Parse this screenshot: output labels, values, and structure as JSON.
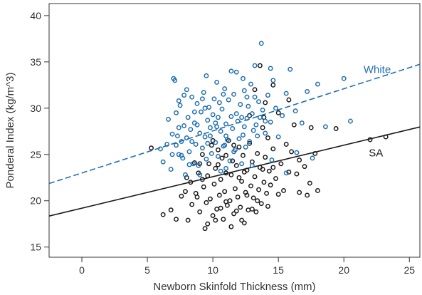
{
  "chart_data": {
    "type": "scatter",
    "title": "",
    "xlabel": "Newborn Skinfold Thickness (mm)",
    "ylabel": "Ponderal Index (kg/m^3)",
    "xlim": [
      -2.5,
      25.8
    ],
    "ylim": [
      13.9,
      41.3
    ],
    "xticks": [
      0,
      5,
      10,
      15,
      20,
      25
    ],
    "yticks": [
      15,
      20,
      25,
      30,
      35,
      40
    ],
    "grid": false,
    "series": [
      {
        "name": "White",
        "color": "#1f6fb2",
        "marker": "open-circle",
        "fit": {
          "intercept": 23.0,
          "slope": 0.455,
          "style": "dashed"
        },
        "label_at": [
          21.5,
          33.8
        ],
        "points": [
          [
            6.0,
            25.6
          ],
          [
            6.2,
            24.2
          ],
          [
            6.5,
            26.1
          ],
          [
            6.6,
            28.8
          ],
          [
            6.8,
            23.4
          ],
          [
            6.9,
            27.2
          ],
          [
            7.0,
            33.2
          ],
          [
            7.1,
            33.0
          ],
          [
            7.2,
            29.5
          ],
          [
            7.3,
            27.0
          ],
          [
            7.4,
            25.0
          ],
          [
            7.5,
            30.3
          ],
          [
            7.6,
            26.4
          ],
          [
            7.7,
            24.6
          ],
          [
            7.8,
            28.1
          ],
          [
            7.9,
            22.8
          ],
          [
            8.0,
            26.8
          ],
          [
            8.1,
            29.0
          ],
          [
            8.2,
            25.3
          ],
          [
            8.3,
            27.7
          ],
          [
            8.4,
            31.2
          ],
          [
            8.5,
            24.0
          ],
          [
            8.6,
            28.4
          ],
          [
            8.7,
            26.1
          ],
          [
            8.8,
            30.5
          ],
          [
            8.9,
            23.8
          ],
          [
            9.0,
            27.3
          ],
          [
            9.1,
            29.6
          ],
          [
            9.2,
            25.7
          ],
          [
            9.3,
            31.7
          ],
          [
            9.4,
            26.9
          ],
          [
            9.5,
            24.5
          ],
          [
            9.6,
            28.7
          ],
          [
            9.7,
            30.1
          ],
          [
            9.8,
            27.0
          ],
          [
            9.9,
            25.1
          ],
          [
            10.0,
            29.3
          ],
          [
            10.1,
            31.0
          ],
          [
            10.2,
            26.3
          ],
          [
            10.3,
            28.0
          ],
          [
            10.4,
            24.8
          ],
          [
            10.5,
            30.6
          ],
          [
            10.6,
            27.5
          ],
          [
            10.7,
            29.9
          ],
          [
            10.8,
            25.9
          ],
          [
            10.9,
            32.1
          ],
          [
            11.0,
            28.3
          ],
          [
            11.1,
            26.6
          ],
          [
            11.2,
            30.9
          ],
          [
            11.3,
            24.3
          ],
          [
            11.4,
            29.1
          ],
          [
            11.5,
            27.8
          ],
          [
            11.6,
            31.5
          ],
          [
            11.7,
            25.5
          ],
          [
            11.8,
            33.9
          ],
          [
            11.9,
            28.6
          ],
          [
            12.0,
            26.7
          ],
          [
            12.1,
            30.4
          ],
          [
            12.2,
            29.0
          ],
          [
            12.3,
            27.1
          ],
          [
            12.4,
            31.9
          ],
          [
            12.5,
            25.8
          ],
          [
            12.6,
            28.9
          ],
          [
            12.7,
            30.2
          ],
          [
            12.8,
            26.4
          ],
          [
            12.9,
            32.6
          ],
          [
            13.0,
            29.4
          ],
          [
            13.1,
            27.6
          ],
          [
            13.2,
            31.2
          ],
          [
            13.3,
            28.2
          ],
          [
            13.5,
            30.7
          ],
          [
            13.7,
            37.0
          ],
          [
            13.8,
            29.8
          ],
          [
            14.0,
            27.3
          ],
          [
            14.2,
            31.4
          ],
          [
            14.4,
            28.5
          ],
          [
            14.6,
            33.0
          ],
          [
            14.8,
            30.0
          ],
          [
            15.0,
            26.9
          ],
          [
            15.3,
            29.2
          ],
          [
            15.6,
            31.6
          ],
          [
            15.9,
            34.2
          ],
          [
            16.3,
            29.7
          ],
          [
            16.8,
            28.4
          ],
          [
            17.2,
            31.8
          ],
          [
            18.0,
            32.6
          ],
          [
            18.6,
            28.0
          ],
          [
            20.0,
            33.2
          ],
          [
            20.5,
            28.6
          ],
          [
            7.4,
            30.8
          ],
          [
            8.0,
            32.0
          ],
          [
            9.5,
            33.5
          ],
          [
            10.3,
            32.8
          ],
          [
            11.4,
            34.0
          ],
          [
            12.3,
            33.2
          ],
          [
            13.2,
            34.6
          ],
          [
            14.4,
            34.3
          ],
          [
            9.0,
            22.8
          ],
          [
            11.0,
            23.5
          ],
          [
            13.0,
            23.8
          ],
          [
            14.5,
            24.4
          ],
          [
            15.6,
            23.0
          ],
          [
            16.4,
            25.2
          ],
          [
            17.6,
            24.6
          ],
          [
            10.6,
            23.2
          ],
          [
            12.2,
            24.0
          ],
          [
            9.2,
            31.0
          ],
          [
            10.8,
            31.5
          ],
          [
            8.6,
            29.6
          ],
          [
            7.8,
            31.4
          ],
          [
            6.9,
            25.0
          ],
          [
            7.4,
            27.9
          ],
          [
            8.2,
            23.9
          ],
          [
            9.8,
            27.9
          ],
          [
            10.4,
            29.0
          ],
          [
            11.0,
            27.0
          ],
          [
            11.8,
            29.4
          ],
          [
            12.6,
            31.2
          ],
          [
            13.4,
            27.0
          ],
          [
            14.0,
            28.6
          ],
          [
            9.6,
            26.2
          ],
          [
            10.9,
            26.0
          ],
          [
            12.4,
            28.0
          ],
          [
            13.6,
            29.0
          ],
          [
            8.4,
            26.4
          ],
          [
            7.6,
            24.9
          ],
          [
            7.2,
            26.0
          ],
          [
            11.6,
            25.3
          ],
          [
            10.2,
            28.4
          ],
          [
            9.4,
            30.0
          ],
          [
            8.8,
            28.2
          ]
        ]
      },
      {
        "name": "SA",
        "color": "#1a1a1a",
        "marker": "open-circle",
        "fit": {
          "intercept": 19.2,
          "slope": 0.34,
          "style": "solid"
        },
        "label_at": [
          21.9,
          24.8
        ],
        "points": [
          [
            5.3,
            25.7
          ],
          [
            6.2,
            18.5
          ],
          [
            6.8,
            19.0
          ],
          [
            7.2,
            18.0
          ],
          [
            7.6,
            20.5
          ],
          [
            7.9,
            21.0
          ],
          [
            8.1,
            17.9
          ],
          [
            8.3,
            22.0
          ],
          [
            8.4,
            19.6
          ],
          [
            8.6,
            24.1
          ],
          [
            8.7,
            20.8
          ],
          [
            8.9,
            23.0
          ],
          [
            9.0,
            18.8
          ],
          [
            9.2,
            25.0
          ],
          [
            9.3,
            21.5
          ],
          [
            9.4,
            17.0
          ],
          [
            9.5,
            19.8
          ],
          [
            9.6,
            22.7
          ],
          [
            9.7,
            24.0
          ],
          [
            9.8,
            20.2
          ],
          [
            9.9,
            26.0
          ],
          [
            10.0,
            18.4
          ],
          [
            10.1,
            21.8
          ],
          [
            10.2,
            23.5
          ],
          [
            10.3,
            19.1
          ],
          [
            10.4,
            25.5
          ],
          [
            10.5,
            20.6
          ],
          [
            10.6,
            22.3
          ],
          [
            10.7,
            24.6
          ],
          [
            10.8,
            18.0
          ],
          [
            10.9,
            21.0
          ],
          [
            11.0,
            23.0
          ],
          [
            11.1,
            19.5
          ],
          [
            11.2,
            26.5
          ],
          [
            11.3,
            20.0
          ],
          [
            11.4,
            22.8
          ],
          [
            11.5,
            24.3
          ],
          [
            11.6,
            18.6
          ],
          [
            11.7,
            21.3
          ],
          [
            11.8,
            23.8
          ],
          [
            11.9,
            20.4
          ],
          [
            12.0,
            25.8
          ],
          [
            12.1,
            19.3
          ],
          [
            12.2,
            22.1
          ],
          [
            12.3,
            24.9
          ],
          [
            12.4,
            17.6
          ],
          [
            12.5,
            20.9
          ],
          [
            12.6,
            23.3
          ],
          [
            12.7,
            19.0
          ],
          [
            12.8,
            26.2
          ],
          [
            12.9,
            21.6
          ],
          [
            13.0,
            24.2
          ],
          [
            13.1,
            20.3
          ],
          [
            13.2,
            22.6
          ],
          [
            13.3,
            18.8
          ],
          [
            13.4,
            25.1
          ],
          [
            13.5,
            21.2
          ],
          [
            13.6,
            23.6
          ],
          [
            13.7,
            19.7
          ],
          [
            13.8,
            27.9
          ],
          [
            13.9,
            22.0
          ],
          [
            14.0,
            24.7
          ],
          [
            14.1,
            20.8
          ],
          [
            14.2,
            26.8
          ],
          [
            14.3,
            23.2
          ],
          [
            14.4,
            21.7
          ],
          [
            14.6,
            25.6
          ],
          [
            14.8,
            22.4
          ],
          [
            15.0,
            29.5
          ],
          [
            15.2,
            24.0
          ],
          [
            15.4,
            21.1
          ],
          [
            15.6,
            26.1
          ],
          [
            15.8,
            23.1
          ],
          [
            16.0,
            25.3
          ],
          [
            16.2,
            28.2
          ],
          [
            16.4,
            22.9
          ],
          [
            16.6,
            24.4
          ],
          [
            17.0,
            23.7
          ],
          [
            17.2,
            20.6
          ],
          [
            17.5,
            27.9
          ],
          [
            17.8,
            25.1
          ],
          [
            18.0,
            21.1
          ],
          [
            19.4,
            27.8
          ],
          [
            22.0,
            26.6
          ],
          [
            23.2,
            26.9
          ],
          [
            13.6,
            34.6
          ],
          [
            14.0,
            30.6
          ],
          [
            14.6,
            32.5
          ],
          [
            15.8,
            30.9
          ],
          [
            13.2,
            32.0
          ],
          [
            12.8,
            29.2
          ],
          [
            13.9,
            29.0
          ],
          [
            9.6,
            17.5
          ],
          [
            10.2,
            17.9
          ],
          [
            11.4,
            17.2
          ],
          [
            11.8,
            18.9
          ],
          [
            12.2,
            17.9
          ],
          [
            8.8,
            20.4
          ],
          [
            9.2,
            22.3
          ],
          [
            10.6,
            19.2
          ],
          [
            11.0,
            19.9
          ],
          [
            12.6,
            20.6
          ],
          [
            13.0,
            19.1
          ],
          [
            13.4,
            20.0
          ],
          [
            14.2,
            19.4
          ],
          [
            8.0,
            22.5
          ],
          [
            9.0,
            24.0
          ],
          [
            10.0,
            26.5
          ],
          [
            11.6,
            26.0
          ],
          [
            12.4,
            23.1
          ],
          [
            13.8,
            23.4
          ],
          [
            15.0,
            20.7
          ],
          [
            16.6,
            20.9
          ],
          [
            17.4,
            21.9
          ],
          [
            14.6,
            23.6
          ],
          [
            10.4,
            23.9
          ],
          [
            11.0,
            24.9
          ],
          [
            12.0,
            22.5
          ]
        ]
      }
    ]
  }
}
